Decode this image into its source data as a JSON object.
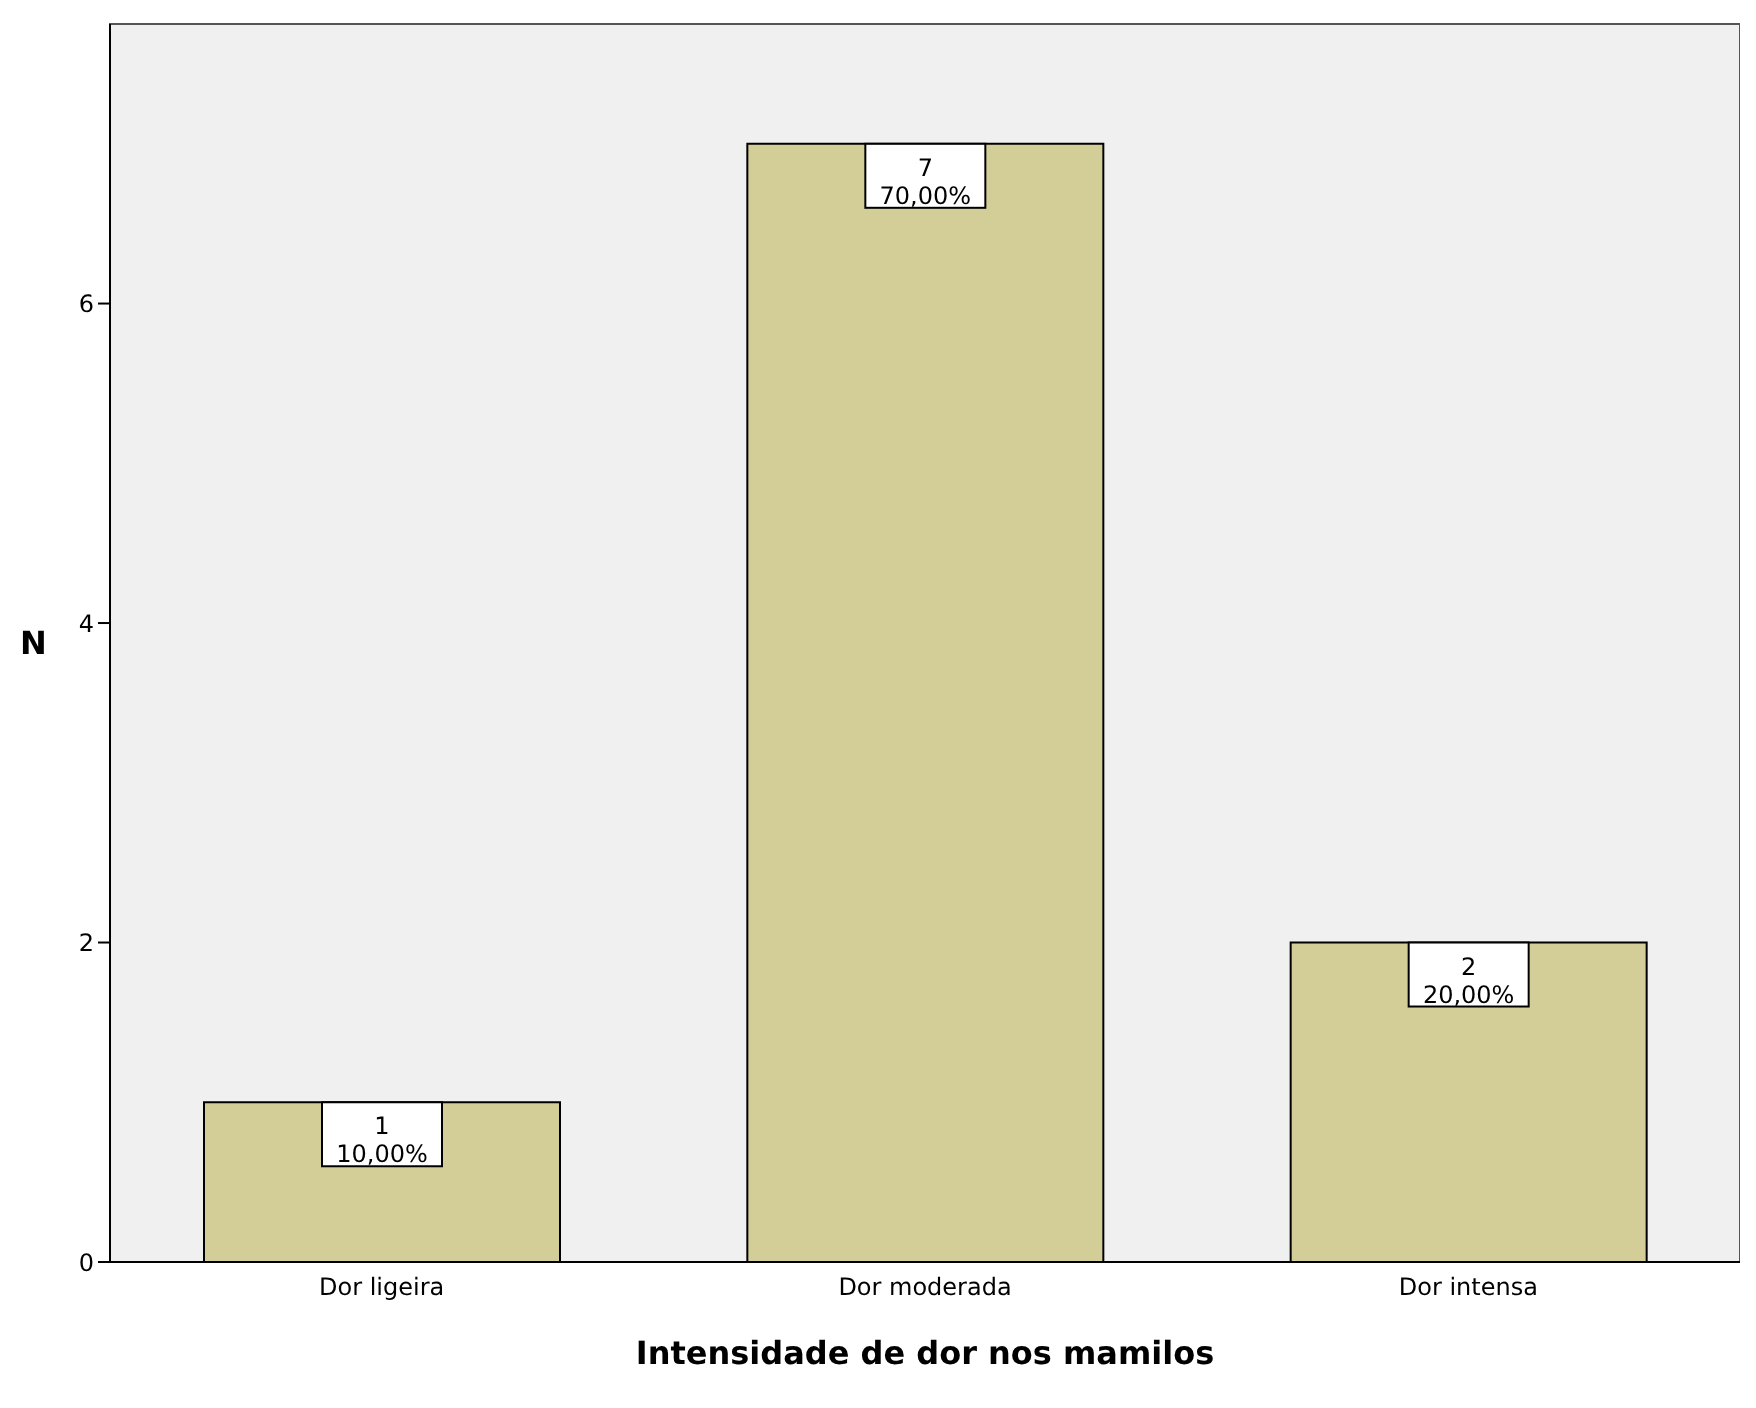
{
  "chart_data": {
    "type": "bar",
    "xlabel": "Intensidade de dor nos mamilos",
    "ylabel": "N",
    "categories": [
      "Dor ligeira",
      "Dor moderada",
      "Dor intensa"
    ],
    "values": [
      1,
      7,
      2
    ],
    "value_labels": [
      "1\n10,00%",
      "7\n70,00%",
      "2\n20,00%"
    ],
    "color": "#d3cd97",
    "ylim": [
      0,
      7.75
    ],
    "yticks": [
      0,
      2,
      4,
      6
    ]
  }
}
